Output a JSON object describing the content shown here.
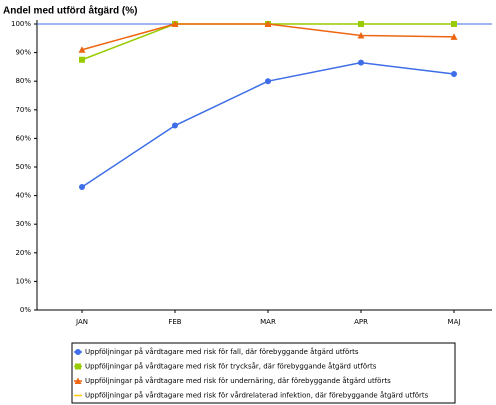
{
  "chart_data": {
    "type": "line",
    "title": "Andel med utförd åtgärd (%)",
    "categories": [
      "JAN",
      "FEB",
      "MAR",
      "APR",
      "MAJ"
    ],
    "series": [
      {
        "name": "Uppföljningar på vårdtagare med risk för fall, där förebyggande åtgärd utförts",
        "color": "#3d6ee8",
        "marker": "circle",
        "values": [
          43,
          64.5,
          80,
          86.5,
          82.5
        ]
      },
      {
        "name": "Uppföljningar på vårdtagare med risk för trycksår, där förebyggande åtgärd utförts",
        "color": "#99cc00",
        "marker": "square",
        "values": [
          87.5,
          100,
          100,
          100,
          100
        ]
      },
      {
        "name": "Uppföljningar på vårdtagare med risk för undernäring, där förebyggande åtgärd utförts",
        "color": "#ee6611",
        "marker": "triangle",
        "values": [
          91,
          100,
          100,
          96,
          95.5
        ]
      },
      {
        "name": "Uppföljningar på vårdtagare med risk för vårdrelaterad infektion, där förebyggande åtgärd utförts",
        "color": "#ffcc00",
        "marker": "none",
        "values": [
          null,
          null,
          null,
          null,
          null
        ]
      }
    ],
    "ylim": [
      0,
      100
    ],
    "yticks": [
      {
        "value": 0,
        "label": "0%"
      },
      {
        "value": 10,
        "label": "10%"
      },
      {
        "value": 20,
        "label": "20%"
      },
      {
        "value": 30,
        "label": "30%"
      },
      {
        "value": 40,
        "label": "40%"
      },
      {
        "value": 50,
        "label": "50%"
      },
      {
        "value": 60,
        "label": "60%"
      },
      {
        "value": 70,
        "label": "70%"
      },
      {
        "value": 80,
        "label": "80%"
      },
      {
        "value": 90,
        "label": "90%"
      },
      {
        "value": 100,
        "label": "100%"
      }
    ],
    "grid": false
  }
}
